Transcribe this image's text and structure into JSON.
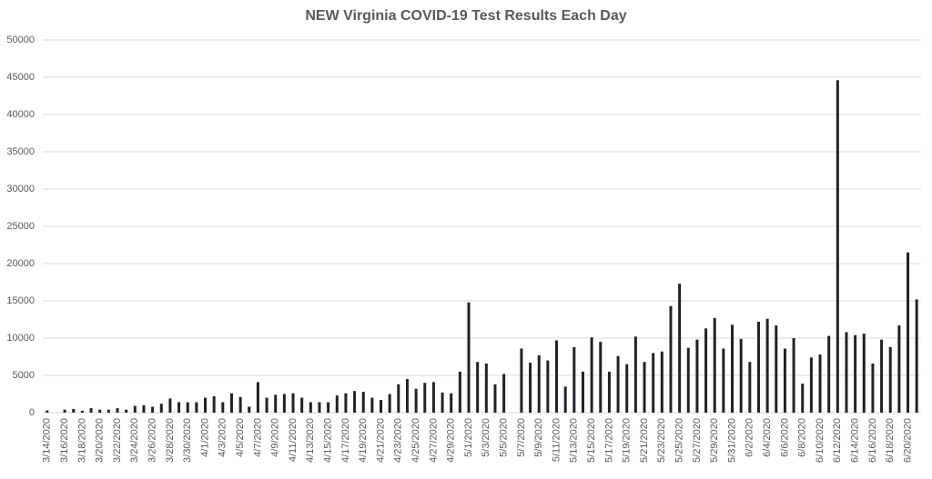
{
  "chart_data": {
    "type": "bar",
    "title": "NEW Virginia COVID-19 Test Results Each Day",
    "categories": [
      "3/14/2020",
      null,
      "3/16/2020",
      null,
      "3/18/2020",
      null,
      "3/20/2020",
      null,
      "3/22/2020",
      null,
      "3/24/2020",
      null,
      "3/26/2020",
      null,
      "3/28/2020",
      null,
      "3/30/2020",
      null,
      "4/1/2020",
      null,
      "4/3/2020",
      null,
      "4/5/2020",
      null,
      "4/7/2020",
      null,
      "4/9/2020",
      null,
      "4/11/2020",
      null,
      "4/13/2020",
      null,
      "4/15/2020",
      null,
      "4/17/2020",
      null,
      "4/19/2020",
      null,
      "4/21/2020",
      null,
      "4/23/2020",
      null,
      "4/25/2020",
      null,
      "4/27/2020",
      null,
      "4/29/2020",
      null,
      "5/1/2020",
      null,
      "5/3/2020",
      null,
      "5/5/2020",
      null,
      "5/7/2020",
      null,
      "5/9/2020",
      null,
      "5/11/2020",
      null,
      "5/13/2020",
      null,
      "5/15/2020",
      null,
      "5/17/2020",
      null,
      "5/19/2020",
      null,
      "5/21/2020",
      null,
      "5/23/2020",
      null,
      "5/25/2020",
      null,
      "5/27/2020",
      null,
      "5/29/2020",
      null,
      "5/31/2020",
      null,
      "6/2/2020",
      null,
      "6/4/2020",
      null,
      "6/6/2020",
      null,
      "6/8/2020",
      null,
      "6/10/2020",
      null,
      "6/12/2020",
      null,
      "6/14/2020",
      null,
      "6/16/2020",
      null,
      "6/18/2020",
      null,
      "6/20/2020",
      null
    ],
    "values": [
      300,
      null,
      400,
      500,
      250,
      600,
      400,
      400,
      600,
      400,
      900,
      1000,
      800,
      1200,
      1900,
      1400,
      1400,
      1400,
      2000,
      2200,
      1400,
      2600,
      2100,
      800,
      4100,
      2000,
      2400,
      2500,
      2600,
      2000,
      1400,
      1400,
      1400,
      2300,
      2600,
      2900,
      2800,
      2000,
      1700,
      2500,
      3800,
      4500,
      3200,
      4000,
      4100,
      2700,
      2600,
      5500,
      14800,
      6800,
      6600,
      3800,
      5200,
      null,
      8600,
      6700,
      7700,
      7000,
      9700,
      3500,
      8800,
      5500,
      10100,
      9500,
      5500,
      7600,
      6500,
      10200,
      6800,
      8000,
      8200,
      14300,
      17300,
      8700,
      9800,
      11300,
      12700,
      8600,
      11800,
      9900,
      6800,
      12200,
      12600,
      11700,
      8600,
      10000,
      3900,
      7400,
      7800,
      10300,
      44600,
      10800,
      10400,
      10600,
      6600,
      9800,
      8800,
      11700,
      21500,
      15200
    ],
    "color": "#1f2328",
    "ylim": [
      0,
      50000
    ],
    "yticks": [
      0,
      5000,
      10000,
      15000,
      20000,
      25000,
      30000,
      35000,
      40000,
      45000,
      50000
    ],
    "grid": true
  }
}
